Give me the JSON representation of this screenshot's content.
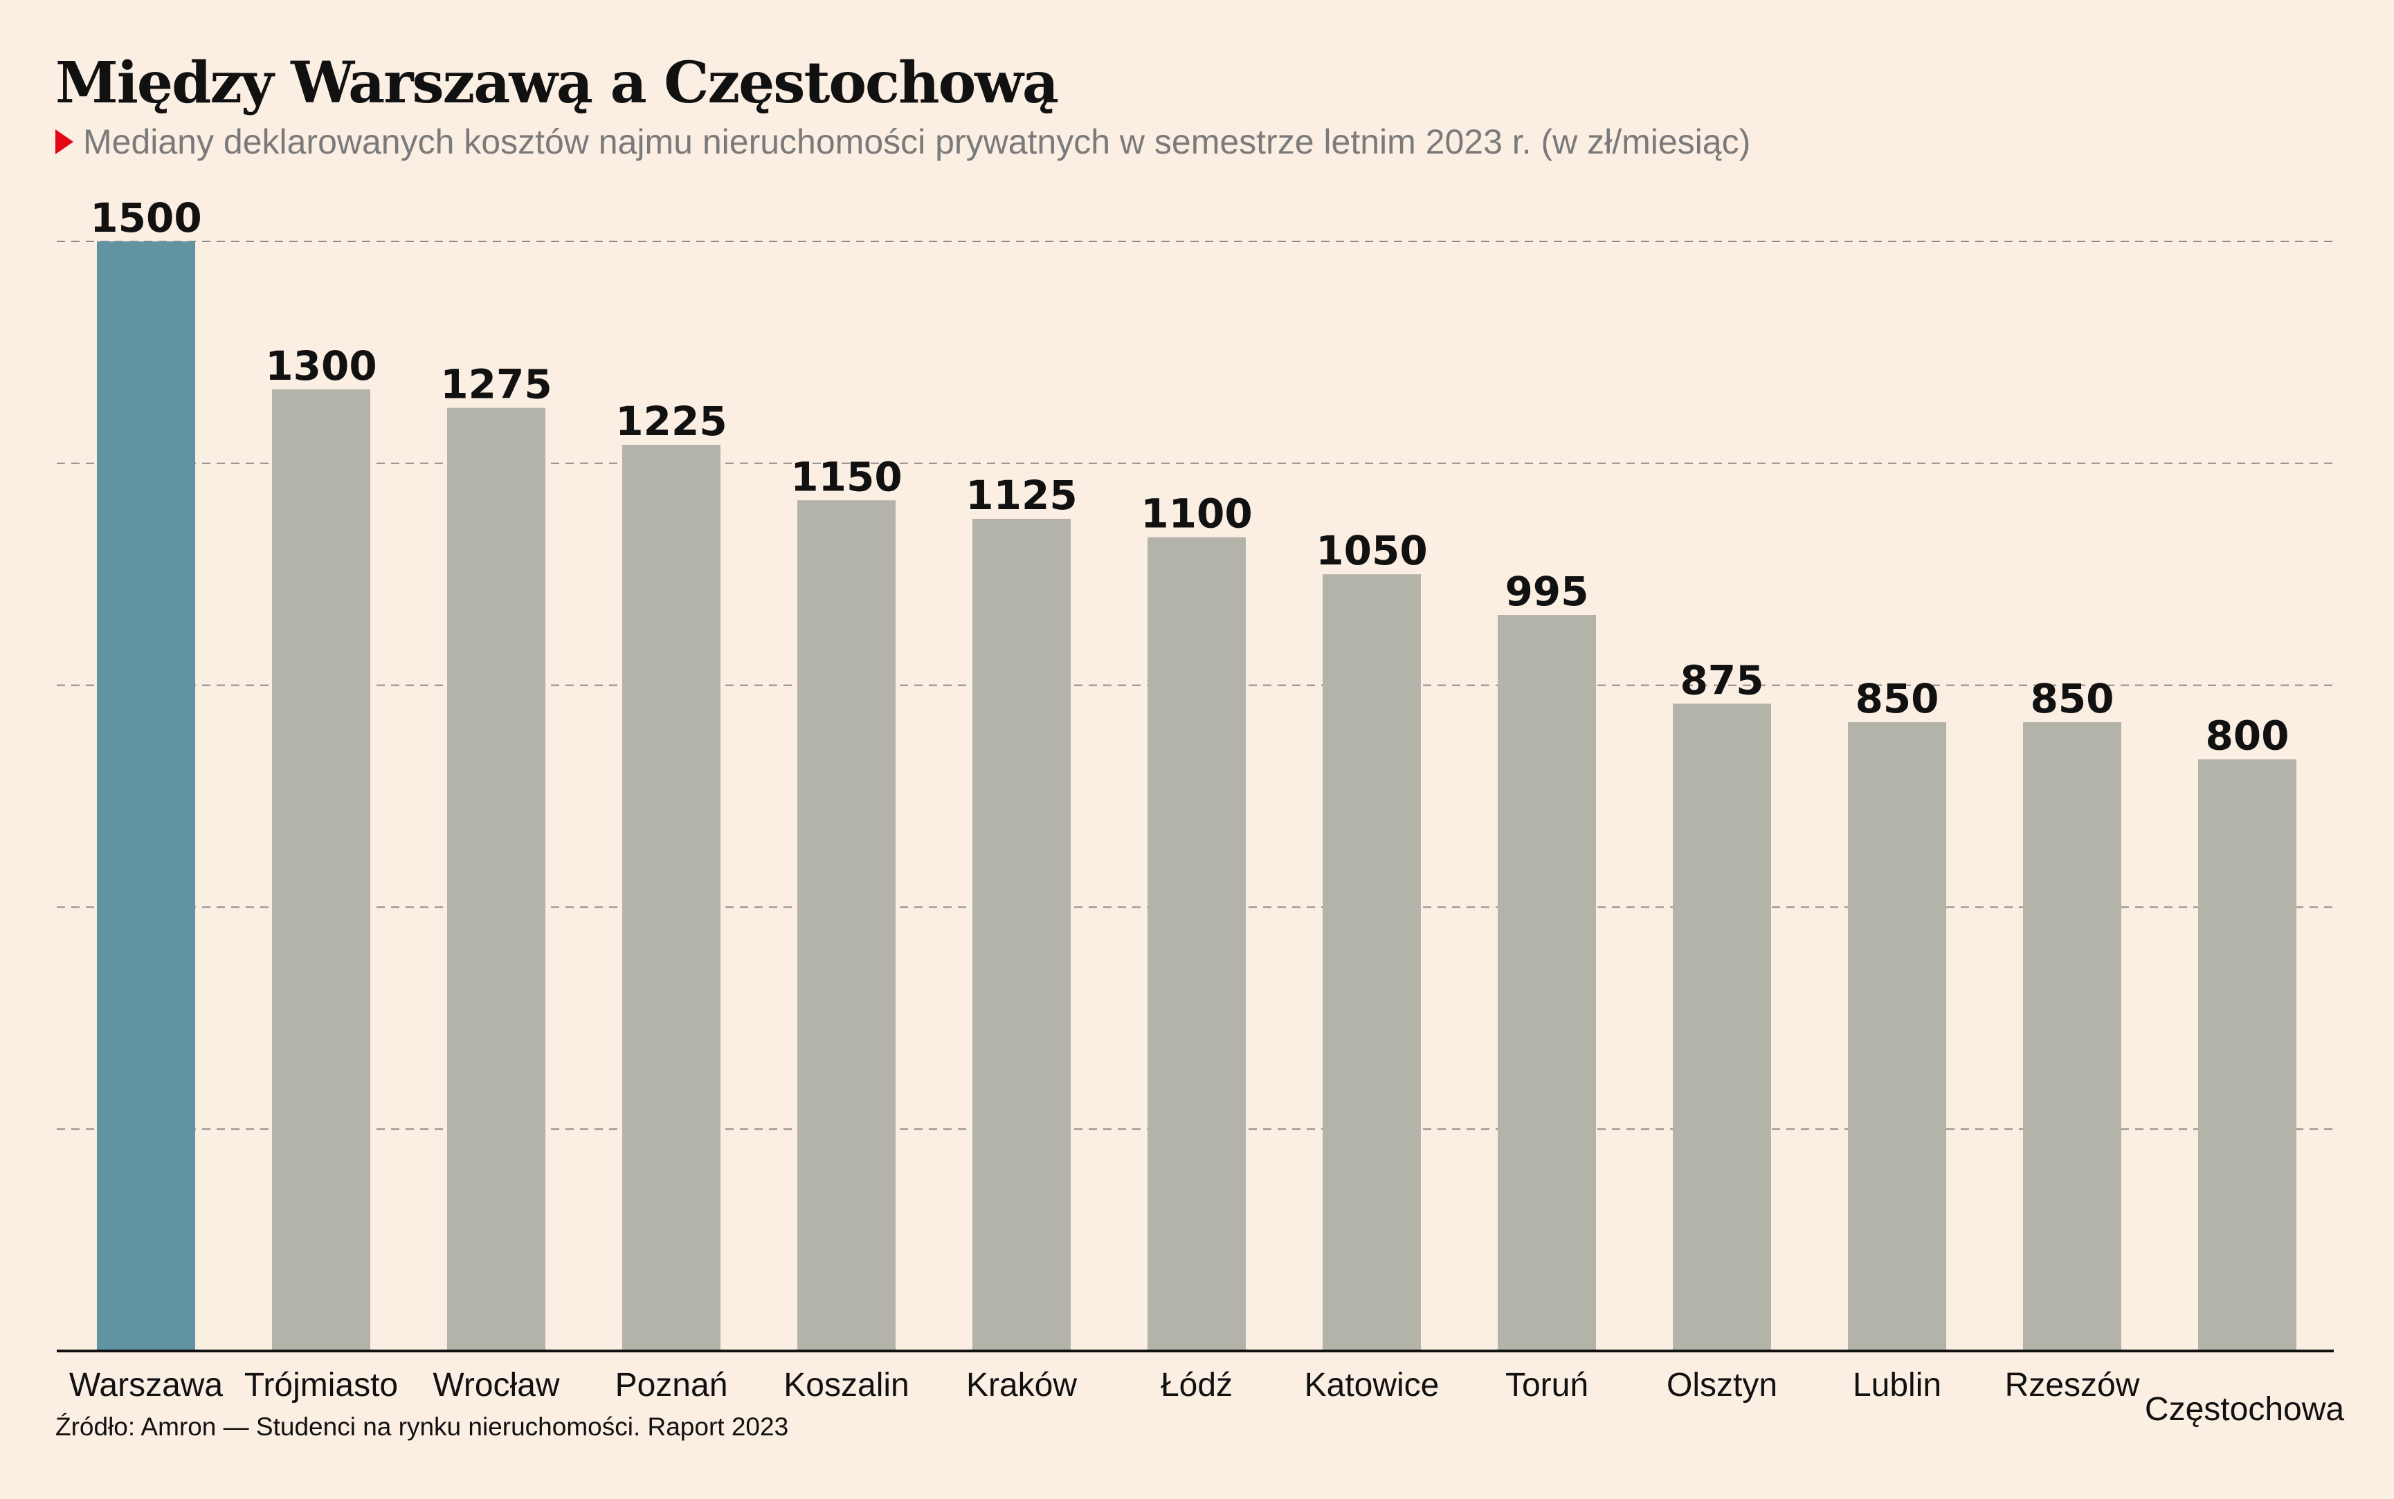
{
  "chart_data": {
    "type": "bar",
    "title": "Między Warszawą a Częstochową",
    "subtitle": "Mediany deklarowanych kosztów najmu nieruchomości prywatnych w semestrze letnim 2023 r. (w zł/miesiąc)",
    "categories": [
      "Warszawa",
      "Trójmiasto",
      "Wrocław",
      "Poznań",
      "Koszalin",
      "Kraków",
      "Łódź",
      "Katowice",
      "Toruń",
      "Olsztyn",
      "Lublin",
      "Rzeszów",
      "Częstochowa"
    ],
    "values": [
      1500,
      1300,
      1275,
      1225,
      1150,
      1125,
      1100,
      1050,
      995,
      875,
      850,
      850,
      800
    ],
    "ylim": [
      0,
      1500
    ],
    "gridlines": [
      300,
      600,
      900,
      1200,
      1500
    ],
    "grid": true,
    "legend": false,
    "data_labels": true,
    "colors": {
      "highlight": "#6293a3",
      "bar": "#b4b3aa",
      "grid": "#8f8a84",
      "axis": "#111111",
      "marker": "#e30613"
    }
  },
  "source": "Źródło: Amron — Studenci na rynku nieruchomości. Raport 2023"
}
